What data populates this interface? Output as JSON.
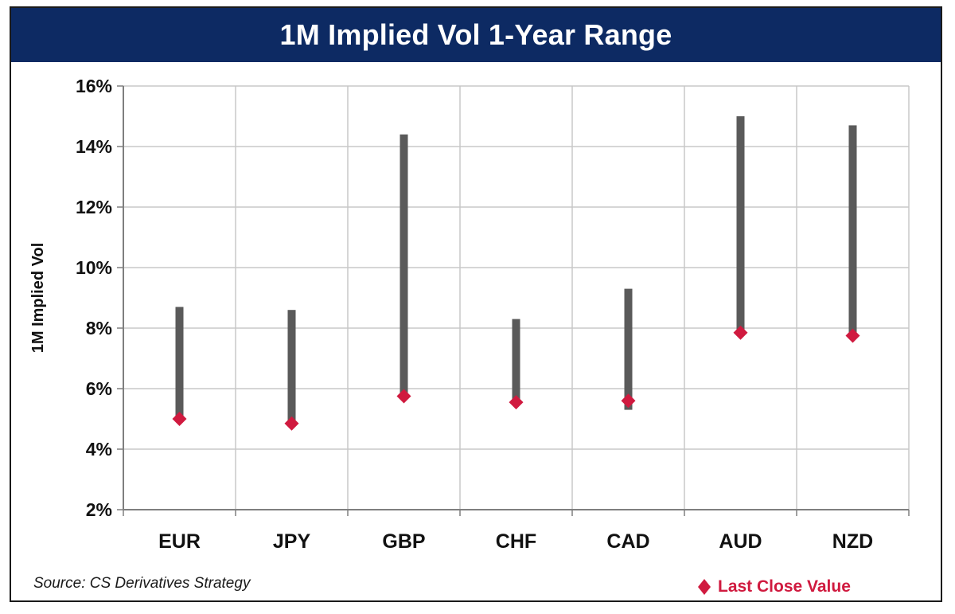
{
  "chart_data": {
    "type": "range",
    "title": "1M Implied Vol 1-Year Range",
    "ylabel": "1M Implied Vol",
    "xlabel": "",
    "ylim": [
      2,
      16
    ],
    "yticks": [
      2,
      4,
      6,
      8,
      10,
      12,
      14,
      16
    ],
    "ytick_labels": [
      "2%",
      "4%",
      "6%",
      "8%",
      "10%",
      "12%",
      "14%",
      "16%"
    ],
    "grid": true,
    "categories": [
      "EUR",
      "JPY",
      "GBP",
      "CHF",
      "CAD",
      "AUD",
      "NZD"
    ],
    "series": [
      {
        "name": "",
        "kind": "range_bar",
        "low": [
          5.0,
          4.8,
          5.8,
          5.6,
          5.3,
          7.9,
          7.8
        ],
        "high": [
          8.7,
          8.6,
          14.4,
          8.3,
          9.3,
          15.0,
          14.7
        ]
      },
      {
        "name": "Last Close Value",
        "kind": "marker",
        "values": [
          5.0,
          4.85,
          5.75,
          5.55,
          5.6,
          7.85,
          7.75
        ]
      }
    ],
    "legend_position": "bottom-right"
  },
  "source_text": "Source: CS Derivatives Strategy",
  "colors": {
    "title_bg": "#0d2a63",
    "range_bar": "#5a5a5a",
    "marker": "#d01a3f",
    "grid": "#c8c8c8",
    "axis": "#7f7f7f"
  },
  "legend_icon": "diamond-icon"
}
